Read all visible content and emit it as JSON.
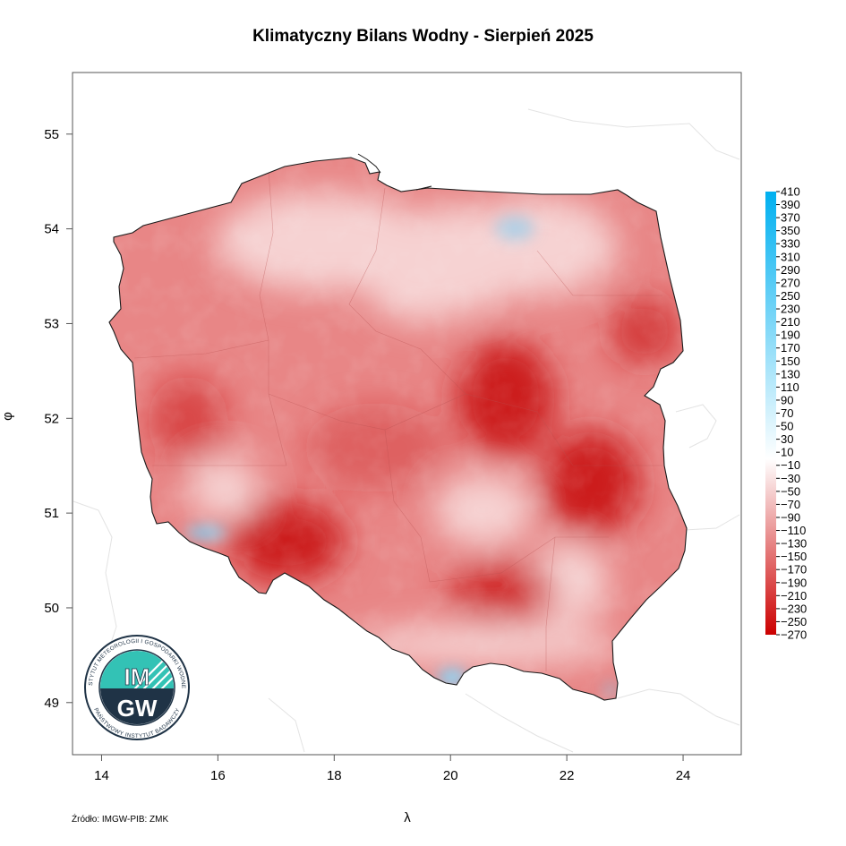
{
  "title": "Klimatyczny Bilans Wodny - Sierpień 2025",
  "source": "Źródło: IMGW-PIB: ZMK",
  "axes": {
    "x_label": "λ",
    "y_label": "φ",
    "x_ticks": [
      "14",
      "16",
      "18",
      "20",
      "22",
      "24"
    ],
    "y_ticks": [
      "55",
      "54",
      "53",
      "52",
      "51",
      "50",
      "49"
    ],
    "x_range": [
      13.5,
      25.0
    ],
    "y_range": [
      48.45,
      55.65
    ]
  },
  "legend": {
    "labels": [
      "410",
      "390",
      "370",
      "350",
      "330",
      "310",
      "290",
      "270",
      "250",
      "230",
      "210",
      "190",
      "170",
      "150",
      "130",
      "110",
      "90",
      "70",
      "50",
      "30",
      "10",
      "-10",
      "-30",
      "-50",
      "-70",
      "-90",
      "-110",
      "-130",
      "-150",
      "-170",
      "-190",
      "-210",
      "-230",
      "-250",
      "-270"
    ],
    "color_top": "#00b0f0",
    "color_mid": "#ffffff",
    "color_bottom": "#cc0000",
    "zero_index": 20.5
  },
  "logo": {
    "text": "IMGW",
    "ring_top": "INSTYTUT METEOROLOGII I GOSPODARKI WODNEJ",
    "ring_bottom": "PAŃSTWOWY INSTYTUT BADAWCZY",
    "colors": {
      "teal": "#33c2b5",
      "navy": "#1f3346"
    }
  },
  "colors": {
    "map_base": "#e88686",
    "map_light": "#f6d2d2",
    "map_dark": "#cc1a1a",
    "map_wet": "#7dd0f5",
    "outline": "#1a1a1a"
  }
}
